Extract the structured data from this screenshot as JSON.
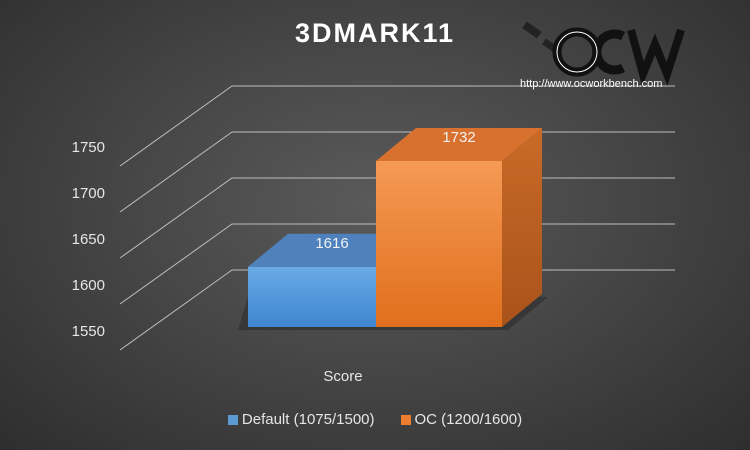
{
  "colors": {
    "background": "#4a4a4a",
    "grid": "#bdbdbd",
    "text": "#e6e6e6"
  },
  "logo": {
    "url": "http://www.ocworkbench.com",
    "icon": "ocw-logo"
  },
  "chart_data": {
    "type": "bar",
    "title": "3DMARK11",
    "categories": [
      "Score"
    ],
    "series": [
      {
        "name": "Default (1075/1500)",
        "values": [
          1616
        ],
        "color": "#5b9bd5"
      },
      {
        "name": "OC (1200/1600)",
        "values": [
          1732
        ],
        "color": "#ed7d31"
      }
    ],
    "ylim": [
      1550,
      1750
    ],
    "yticks": [
      1550,
      1600,
      1650,
      1700,
      1750
    ],
    "data_labels": true,
    "grid": true,
    "legend": "bottom",
    "style": "3d-column"
  }
}
